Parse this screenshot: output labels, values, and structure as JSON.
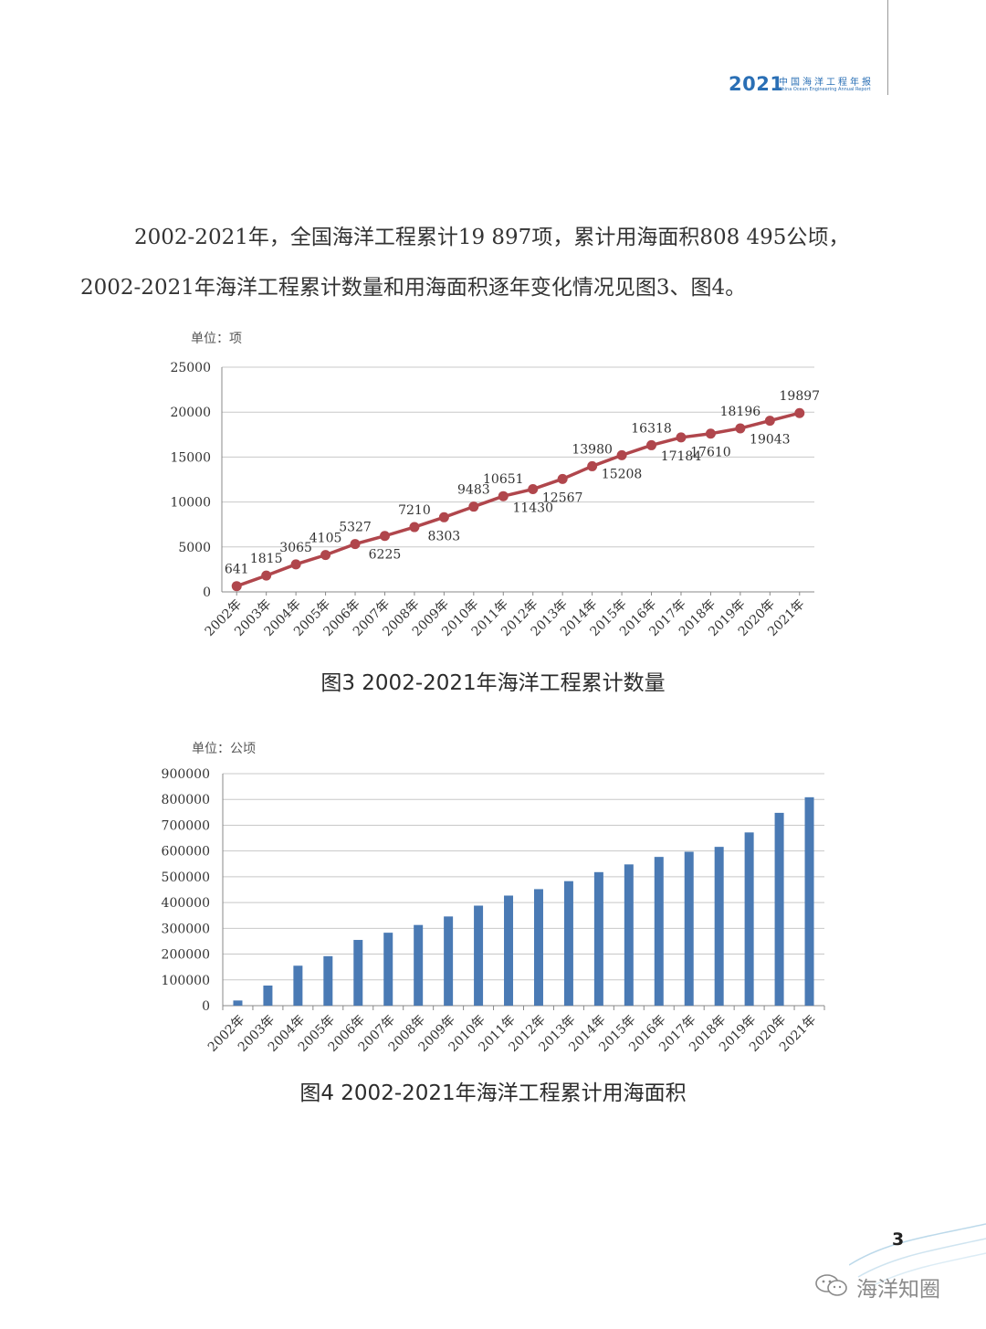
{
  "header": {
    "year": "2021",
    "title_cn": "中国海洋工程年报",
    "title_en": "China Ocean Engineering Annual Report"
  },
  "paragraph": {
    "line1": "2002-2021年，全国海洋工程累计19 897项，累计用海面积808 495公顷，",
    "line2": "2002-2021年海洋工程累计数量和用海面积逐年变化情况见图3、图4。"
  },
  "page_number": "3",
  "watermark": "海洋知圈",
  "chart_data": [
    {
      "type": "line",
      "unit_label": "单位：项",
      "caption": "图3  2002-2021年海洋工程累计数量",
      "color": "#b0464c",
      "categories": [
        "2002年",
        "2003年",
        "2004年",
        "2005年",
        "2006年",
        "2007年",
        "2008年",
        "2009年",
        "2010年",
        "2011年",
        "2012年",
        "2013年",
        "2014年",
        "2015年",
        "2016年",
        "2017年",
        "2018年",
        "2019年",
        "2020年",
        "2021年"
      ],
      "values": [
        641,
        1815,
        3065,
        4105,
        5327,
        6225,
        7210,
        8303,
        9483,
        10651,
        11430,
        12567,
        13980,
        15208,
        16318,
        17184,
        17610,
        18196,
        19043,
        19897
      ],
      "data_labels": [
        "641",
        "1815",
        "3065",
        "4105",
        "5327",
        "6225",
        "7210",
        "8303",
        "9483",
        "10651",
        "11430",
        "12567",
        "13980",
        "15208",
        "16318",
        "17184",
        "17610",
        "18196",
        "19043",
        "19897"
      ],
      "yticks": [
        "0",
        "5000",
        "10000",
        "15000",
        "20000",
        "25000"
      ],
      "ylim": [
        0,
        25000
      ],
      "grid": true
    },
    {
      "type": "bar",
      "unit_label": "单位：公顷",
      "caption": "图4  2002-2021年海洋工程累计用海面积",
      "color": "#4a7ab4",
      "categories": [
        "2002年",
        "2003年",
        "2004年",
        "2005年",
        "2006年",
        "2007年",
        "2008年",
        "2009年",
        "2010年",
        "2011年",
        "2012年",
        "2013年",
        "2014年",
        "2015年",
        "2016年",
        "2017年",
        "2018年",
        "2019年",
        "2020年",
        "2021年"
      ],
      "values": [
        20000,
        78000,
        155000,
        192000,
        255000,
        283000,
        313000,
        346000,
        388000,
        427000,
        452000,
        483000,
        518000,
        548000,
        577000,
        597000,
        616000,
        672000,
        748000,
        808495
      ],
      "yticks": [
        "0",
        "100000",
        "200000",
        "300000",
        "400000",
        "500000",
        "600000",
        "700000",
        "800000",
        "900000"
      ],
      "ylim": [
        0,
        900000
      ],
      "grid": true
    }
  ]
}
